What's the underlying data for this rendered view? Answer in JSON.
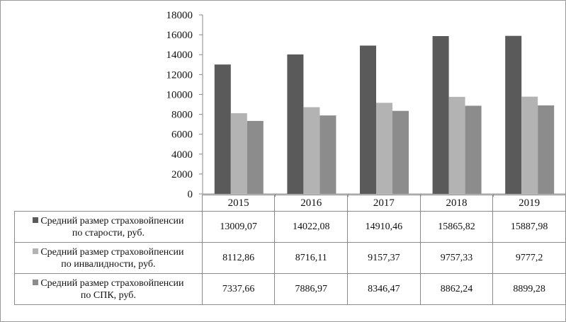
{
  "colors": {
    "series1": "#5a5a5a",
    "series2": "#b3b3b3",
    "series3": "#8c8c8c"
  },
  "chart_data": {
    "type": "bar",
    "categories": [
      "2015",
      "2016",
      "2017",
      "2018",
      "2019"
    ],
    "series": [
      {
        "name": "Средний размер страховой пенсии по старости, руб.",
        "values": [
          13009.07,
          14022.08,
          14910.46,
          15865.82,
          15887.98
        ]
      },
      {
        "name": "Средний размер страховой пенсии по инвалидности, руб.",
        "values": [
          8112.86,
          8716.11,
          9157.37,
          9757.33,
          9777.2
        ]
      },
      {
        "name": "Средний размер страховой пенсии по СПК, руб.",
        "values": [
          7337.66,
          7886.97,
          8346.47,
          8862.24,
          8899.28
        ]
      }
    ],
    "ylim": [
      0,
      18000
    ],
    "yticks": [
      "0",
      "2000",
      "4000",
      "6000",
      "8000",
      "10000",
      "12000",
      "14000",
      "16000",
      "18000"
    ],
    "grid": false,
    "legend": "data-table below chart"
  },
  "table": {
    "rows": [
      {
        "label_line1": "Средний размер страховойпенсии",
        "label_line2": "по старости, руб.",
        "cells": [
          "13009,07",
          "14022,08",
          "14910,46",
          "15865,82",
          "15887,98"
        ]
      },
      {
        "label_line1": "Средний размер страховойпенсии",
        "label_line2": "по инвалидности, руб.",
        "cells": [
          "8112,86",
          "8716,11",
          "9157,37",
          "9757,33",
          "9777,2"
        ]
      },
      {
        "label_line1": "Средний размер страховойпенсии",
        "label_line2": "по СПК, руб.",
        "cells": [
          "7337,66",
          "7886,97",
          "8346,47",
          "8862,24",
          "8899,28"
        ]
      }
    ]
  }
}
